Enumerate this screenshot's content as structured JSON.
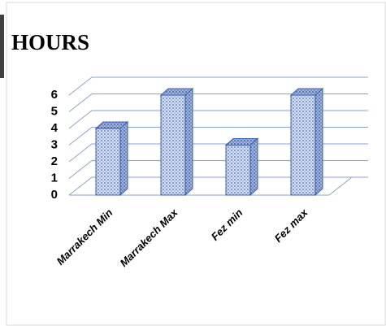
{
  "chart_data": {
    "type": "bar",
    "title": "HOURS",
    "categories": [
      "Marrakech Min",
      "Marrakech Max",
      "Fez min",
      "Fez max"
    ],
    "values": [
      4,
      6,
      3,
      6
    ],
    "color": "#c5d3ee",
    "ylim": [
      0,
      6
    ],
    "yticks": [
      0,
      1,
      2,
      3,
      4,
      5,
      6
    ],
    "grid": true
  }
}
